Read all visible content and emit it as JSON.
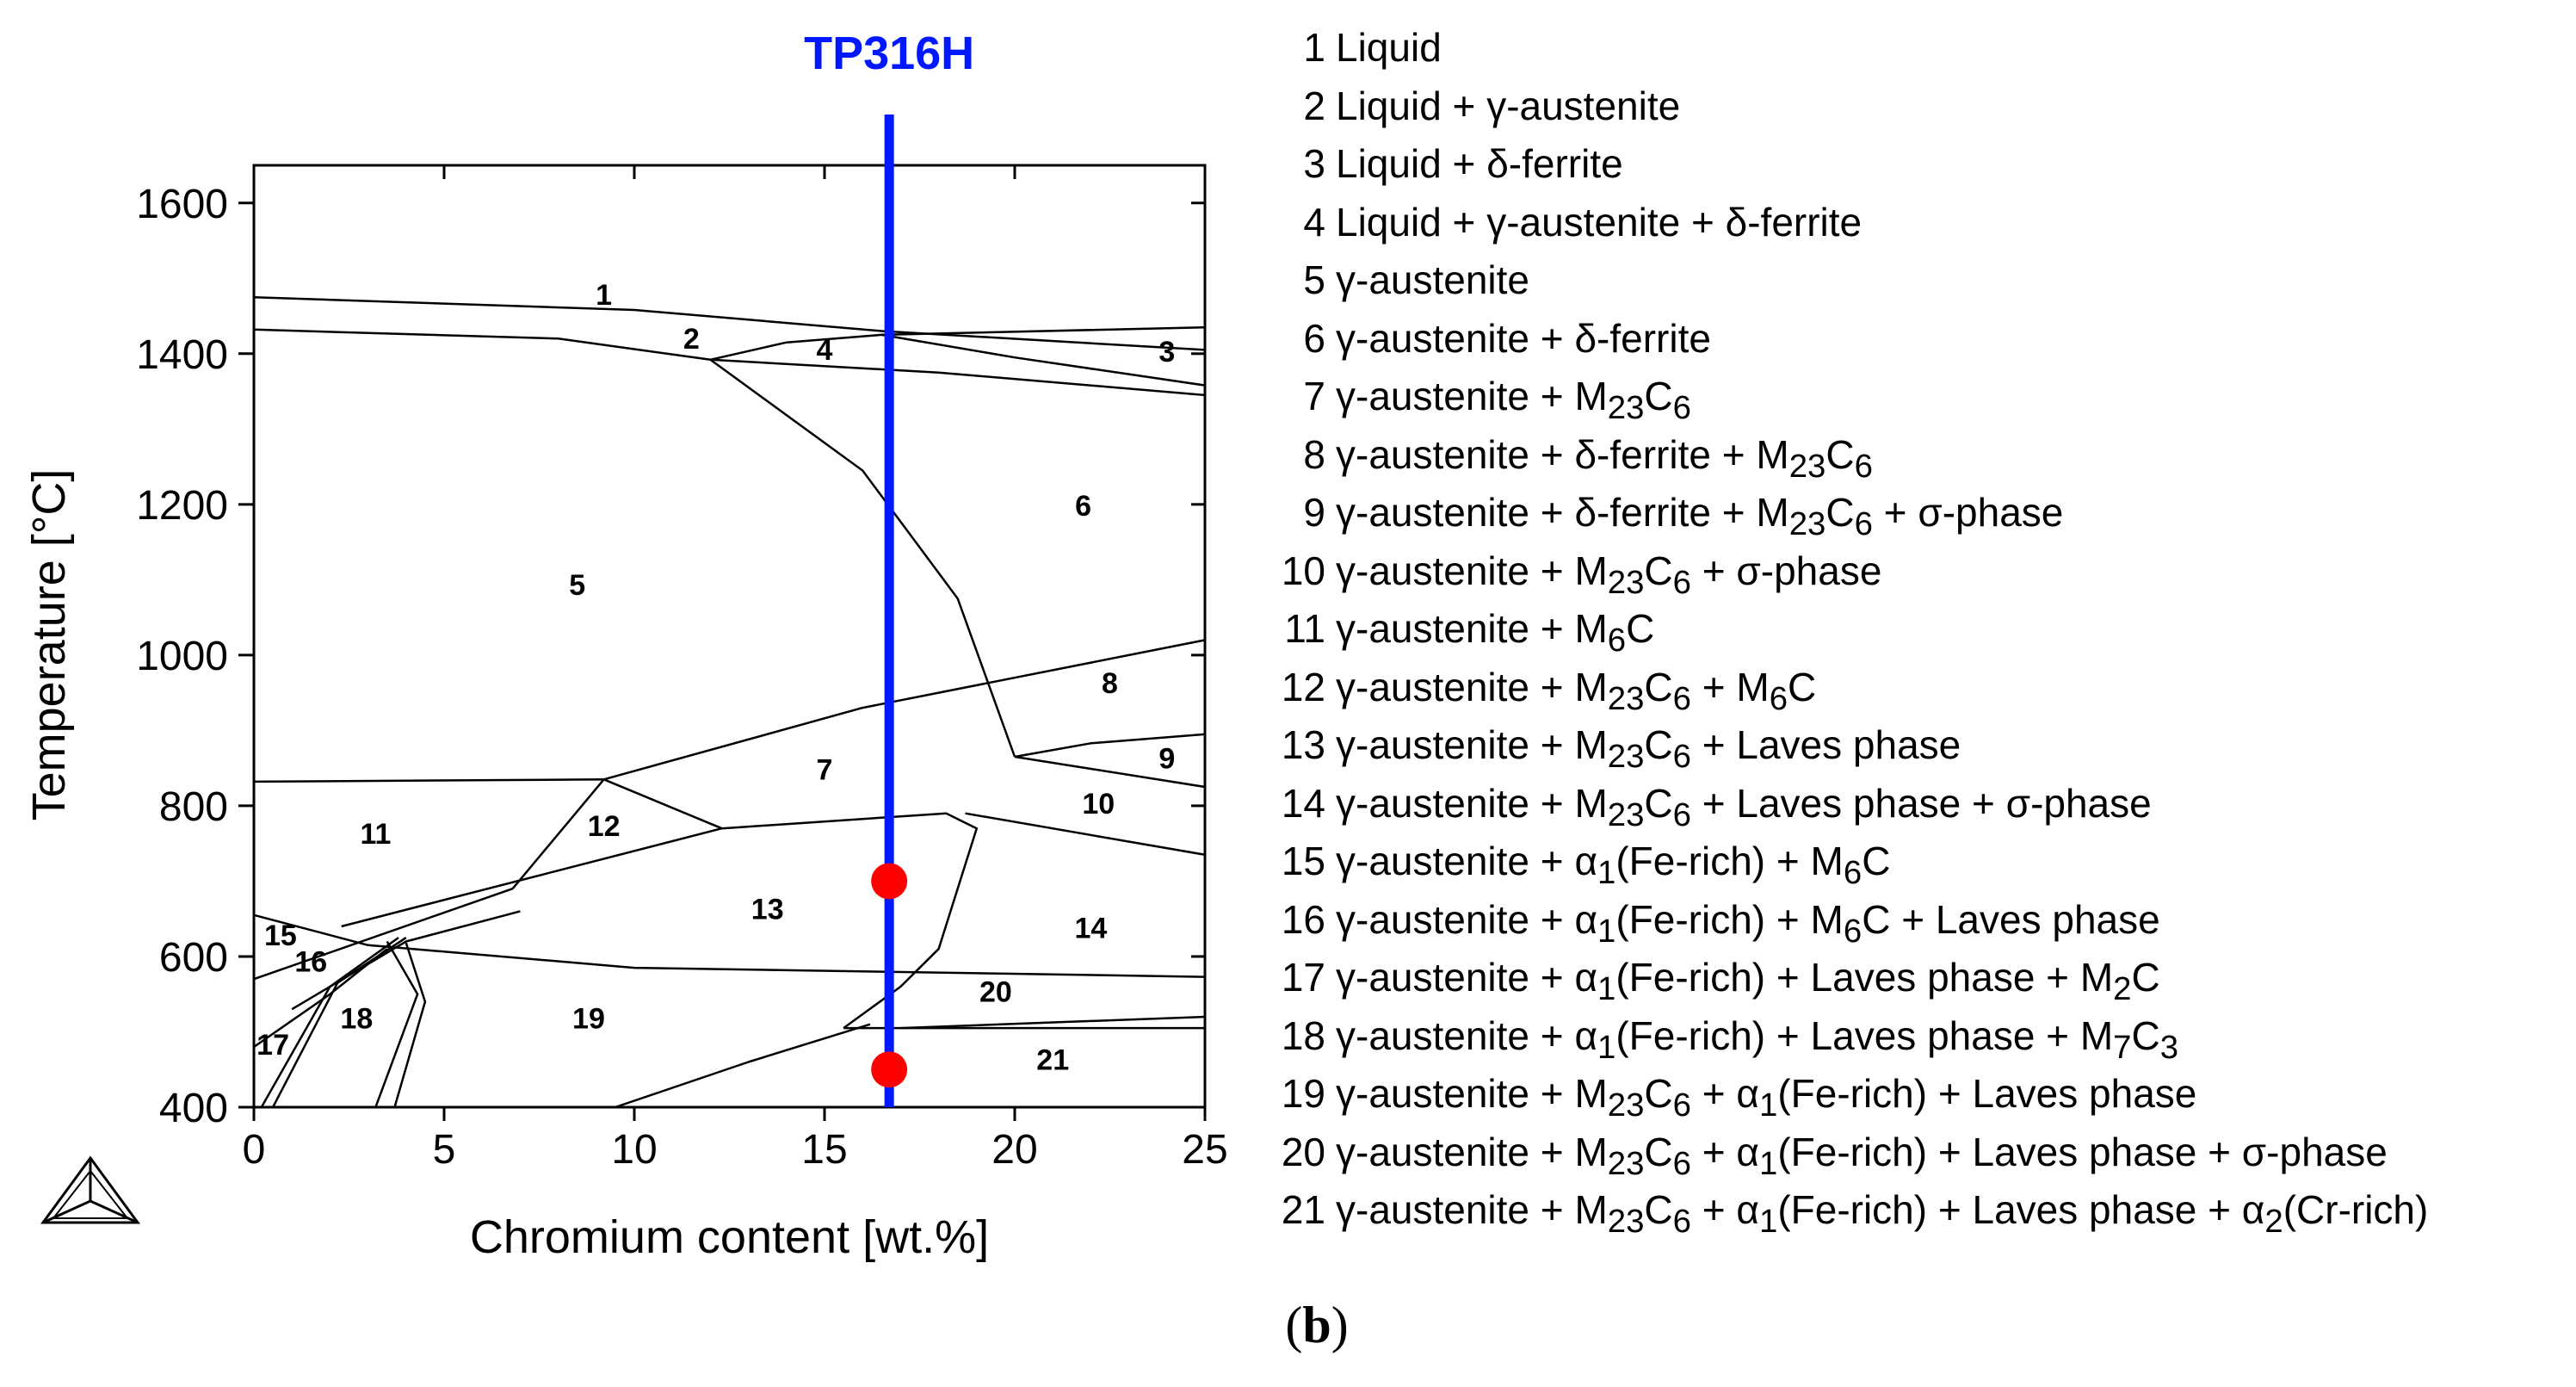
{
  "chart_data": {
    "type": "phase-diagram",
    "xlabel": "Chromium content [wt.%]",
    "ylabel": "Temperature [°C]",
    "xlim": [
      0,
      25
    ],
    "ylim": [
      400,
      1650
    ],
    "xticks": [
      0,
      5,
      10,
      15,
      20,
      25
    ],
    "yticks": [
      400,
      600,
      800,
      1000,
      1200,
      1400,
      1600
    ],
    "marker_line": {
      "label": "TP316H",
      "x": 16.7,
      "color": "#0018ff"
    },
    "points": [
      {
        "x": 16.7,
        "y": 700,
        "color": "#ff0000"
      },
      {
        "x": 16.7,
        "y": 450,
        "color": "#ff0000"
      }
    ],
    "phase_boundaries": [
      [
        [
          0,
          1475
        ],
        [
          10,
          1458
        ],
        [
          16.5,
          1430
        ],
        [
          25,
          1405
        ]
      ],
      [
        [
          0,
          1432
        ],
        [
          8,
          1420
        ],
        [
          12,
          1392
        ],
        [
          18,
          1375
        ],
        [
          25,
          1345
        ]
      ],
      [
        [
          12,
          1392
        ],
        [
          14,
          1415
        ],
        [
          16.5,
          1425
        ],
        [
          25,
          1435
        ]
      ],
      [
        [
          16.5,
          1425
        ],
        [
          20,
          1395
        ],
        [
          25,
          1358
        ]
      ],
      [
        [
          12,
          1392
        ],
        [
          16,
          1245
        ],
        [
          18.5,
          1075
        ],
        [
          20,
          865
        ]
      ],
      [
        [
          0,
          832
        ],
        [
          9.2,
          835
        ],
        [
          12.3,
          770
        ],
        [
          18.2,
          790
        ],
        [
          19,
          770
        ],
        [
          18,
          610
        ],
        [
          17,
          560
        ],
        [
          15.5,
          505
        ]
      ],
      [
        [
          6.8,
          690
        ],
        [
          9.2,
          835
        ],
        [
          16,
          930
        ],
        [
          25,
          1020
        ]
      ],
      [
        [
          20,
          865
        ],
        [
          22,
          883
        ],
        [
          25,
          895
        ]
      ],
      [
        [
          20,
          865
        ],
        [
          25,
          825
        ]
      ],
      [
        [
          18.7,
          790
        ],
        [
          25,
          735
        ]
      ],
      [
        [
          0,
          655
        ],
        [
          3,
          615
        ],
        [
          10,
          585
        ],
        [
          25,
          573
        ]
      ],
      [
        [
          0,
          570
        ],
        [
          6.8,
          690
        ]
      ],
      [
        [
          2.3,
          640
        ],
        [
          12.3,
          770
        ]
      ],
      [
        [
          1,
          530
        ],
        [
          4,
          620
        ],
        [
          7,
          660
        ]
      ],
      [
        [
          3.5,
          620
        ],
        [
          4.3,
          550
        ],
        [
          3.2,
          400
        ]
      ],
      [
        [
          4,
          618
        ],
        [
          4.5,
          540
        ],
        [
          3.7,
          400
        ]
      ],
      [
        [
          0,
          480
        ],
        [
          2,
          550
        ],
        [
          3.5,
          610
        ]
      ],
      [
        [
          0.2,
          400
        ],
        [
          2,
          560
        ],
        [
          3.8,
          625
        ]
      ],
      [
        [
          0.5,
          400
        ],
        [
          2.2,
          565
        ],
        [
          4,
          625
        ]
      ],
      [
        [
          15.5,
          505
        ],
        [
          25,
          505
        ]
      ],
      [
        [
          17,
          505
        ],
        [
          25,
          520
        ]
      ],
      [
        [
          9.5,
          400
        ],
        [
          13,
          460
        ],
        [
          16.2,
          510
        ]
      ]
    ],
    "region_labels": [
      {
        "text": "1",
        "x": 9.2,
        "y": 1475
      },
      {
        "text": "2",
        "x": 11.5,
        "y": 1417
      },
      {
        "text": "3",
        "x": 24,
        "y": 1400
      },
      {
        "text": "4",
        "x": 15,
        "y": 1402
      },
      {
        "text": "5",
        "x": 8.5,
        "y": 1090
      },
      {
        "text": "6",
        "x": 21.8,
        "y": 1195
      },
      {
        "text": "7",
        "x": 15,
        "y": 845
      },
      {
        "text": "8",
        "x": 22.5,
        "y": 960
      },
      {
        "text": "9",
        "x": 24,
        "y": 860
      },
      {
        "text": "10",
        "x": 22.2,
        "y": 800
      },
      {
        "text": "11",
        "x": 3.2,
        "y": 760
      },
      {
        "text": "12",
        "x": 9.2,
        "y": 770
      },
      {
        "text": "13",
        "x": 13.5,
        "y": 660
      },
      {
        "text": "14",
        "x": 22,
        "y": 635
      },
      {
        "text": "15",
        "x": 0.7,
        "y": 625
      },
      {
        "text": "16",
        "x": 1.5,
        "y": 590
      },
      {
        "text": "17",
        "x": 0.5,
        "y": 480
      },
      {
        "text": "18",
        "x": 2.7,
        "y": 515
      },
      {
        "text": "19",
        "x": 8.8,
        "y": 515
      },
      {
        "text": "20",
        "x": 19.5,
        "y": 550
      },
      {
        "text": "21",
        "x": 21,
        "y": 460
      }
    ],
    "legend": [
      {
        "num": "1",
        "phase": "Liquid"
      },
      {
        "num": "2",
        "phase": "Liquid + γ-austenite"
      },
      {
        "num": "3",
        "phase": "Liquid + δ-ferrite"
      },
      {
        "num": "4",
        "phase": "Liquid + γ-austenite + δ-ferrite"
      },
      {
        "num": "5",
        "phase": "γ-austenite"
      },
      {
        "num": "6",
        "phase": "γ-austenite + δ-ferrite"
      },
      {
        "num": "7",
        "phase": "γ-austenite + M23C6"
      },
      {
        "num": "8",
        "phase": "γ-austenite + δ-ferrite + M23C6"
      },
      {
        "num": "9",
        "phase": "γ-austenite + δ-ferrite + M23C6 + σ-phase"
      },
      {
        "num": "10",
        "phase": "γ-austenite + M23C6 + σ-phase"
      },
      {
        "num": "11",
        "phase": "γ-austenite + M6C"
      },
      {
        "num": "12",
        "phase": "γ-austenite + M23C6 + M6C"
      },
      {
        "num": "13",
        "phase": "γ-austenite + M23C6 + Laves phase"
      },
      {
        "num": "14",
        "phase": "γ-austenite + M23C6 + Laves phase + σ-phase"
      },
      {
        "num": "15",
        "phase": "γ-austenite + α1(Fe-rich) + M6C"
      },
      {
        "num": "16",
        "phase": "γ-austenite + α1(Fe-rich) + M6C + Laves phase"
      },
      {
        "num": "17",
        "phase": "γ-austenite + α1(Fe-rich) + Laves phase + M2C"
      },
      {
        "num": "18",
        "phase": "γ-austenite + α1(Fe-rich) + Laves phase + M7C3"
      },
      {
        "num": "19",
        "phase": "γ-austenite + M23C6 + α1(Fe-rich) + Laves phase"
      },
      {
        "num": "20",
        "phase": "γ-austenite + M23C6 + α1(Fe-rich) + Laves phase + σ-phase"
      },
      {
        "num": "21",
        "phase": "γ-austenite + M23C6 + α1(Fe-rich) + Laves phase + α2(Cr-rich)"
      }
    ]
  },
  "panel_label": {
    "open": "(",
    "letter": "b",
    "close": ")"
  }
}
